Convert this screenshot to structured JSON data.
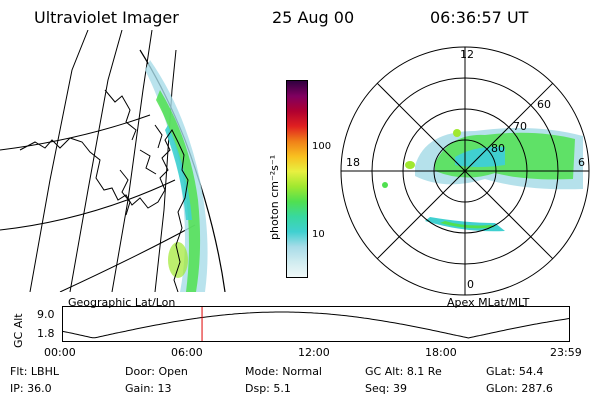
{
  "header": {
    "instrument": "Ultraviolet Imager",
    "date": "25 Aug 00",
    "time": "06:36:57 UT"
  },
  "colorbar": {
    "label": "photon cm⁻²s⁻¹",
    "ticks": [
      "100",
      "10"
    ],
    "scale": "log",
    "colors": [
      "#f0f8f8",
      "#d0ecf0",
      "#a8dce8",
      "#40d0d0",
      "#38d8a0",
      "#50e050",
      "#a0e830",
      "#e8f040",
      "#f8c020",
      "#f08018",
      "#e02020",
      "#b00030",
      "#800060",
      "#300040"
    ]
  },
  "panels": {
    "geographic_label": "Geographic Lat/Lon",
    "apex_label": "Apex MLat/MLT"
  },
  "polar": {
    "mlt_labels": {
      "top": "12",
      "bottom": "0",
      "left": "18",
      "right": "6"
    },
    "lat_labels": [
      "60",
      "70",
      "80"
    ]
  },
  "altitude": {
    "ylabel": "GC Alt",
    "yticks": [
      "9.0",
      "1.8"
    ],
    "xticks": [
      "00:00",
      "06:00",
      "12:00",
      "18:00",
      "23:59"
    ],
    "current_time_hours": 6.616
  },
  "info": {
    "row1": [
      {
        "label": "Flt:",
        "value": "LBHL"
      },
      {
        "label": "Door:",
        "value": "Open"
      },
      {
        "label": "Mode:",
        "value": "Normal"
      },
      {
        "label": "GC Alt:",
        "value": "8.1 Re"
      },
      {
        "label": "GLat:",
        "value": "54.4"
      }
    ],
    "row2": [
      {
        "label": "IP:",
        "value": "36.0"
      },
      {
        "label": "Gain:",
        "value": "13"
      },
      {
        "label": "Dsp:",
        "value": "5.1"
      },
      {
        "label": "Seq:",
        "value": "39"
      },
      {
        "label": "GLon:",
        "value": "287.6"
      }
    ]
  }
}
